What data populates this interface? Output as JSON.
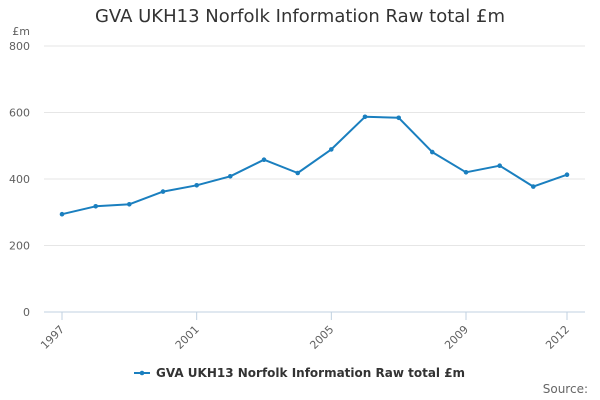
{
  "title": "GVA UKH13 Norfolk Information Raw total £m",
  "source_label": "Source:",
  "chart_data": {
    "type": "line",
    "title": "GVA UKH13 Norfolk Information Raw total £m",
    "ylabel": "£m",
    "xlabel": "",
    "x": [
      1997,
      1998,
      1999,
      2000,
      2001,
      2002,
      2003,
      2004,
      2005,
      2006,
      2007,
      2008,
      2009,
      2010,
      2011,
      2012
    ],
    "x_tick_labels": [
      "1997",
      "2001",
      "2005",
      "2009",
      "2012"
    ],
    "ylim": [
      0,
      800
    ],
    "y_ticks": [
      0,
      200,
      400,
      600,
      800
    ],
    "grid": true,
    "legend_position": "bottom",
    "series": [
      {
        "name": "GVA UKH13 Norfolk Information Raw total £m",
        "color": "#1a7fbf",
        "values": [
          294,
          318,
          324,
          362,
          381,
          408,
          458,
          418,
          489,
          587,
          584,
          481,
          420,
          440,
          377,
          413
        ]
      }
    ]
  }
}
